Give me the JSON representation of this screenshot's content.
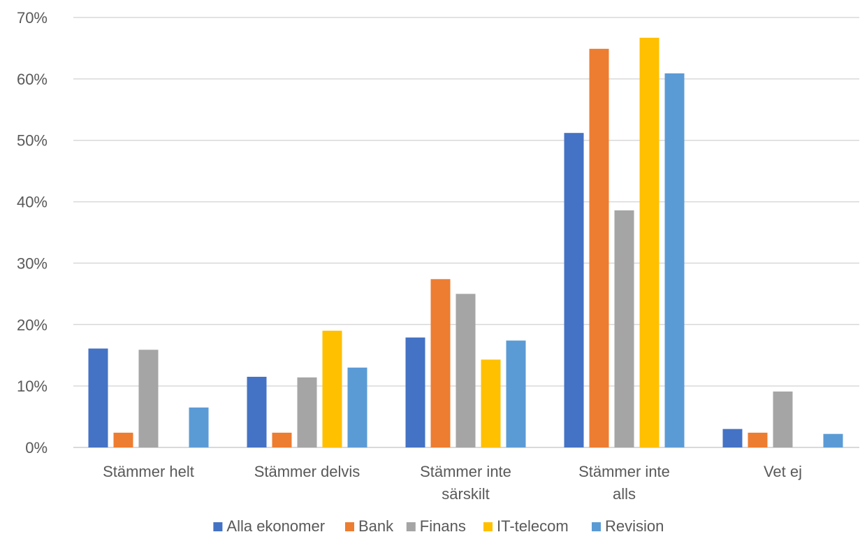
{
  "chart_data": {
    "type": "bar",
    "title": "",
    "xlabel": "",
    "ylabel": "",
    "ylim": [
      0,
      70
    ],
    "y_tick_step": 10,
    "y_tick_format": "percent",
    "grid": true,
    "legend_position": "bottom",
    "categories": [
      [
        "Stämmer helt"
      ],
      [
        "Stämmer delvis"
      ],
      [
        "Stämmer inte",
        "särskilt"
      ],
      [
        "Stämmer inte",
        "alls"
      ],
      [
        "Vet ej"
      ]
    ],
    "series": [
      {
        "name": "Alla ekonomer",
        "color": "#4472C4",
        "values": [
          16.1,
          11.5,
          17.9,
          51.2,
          3.0
        ]
      },
      {
        "name": "Bank",
        "color": "#ED7D31",
        "values": [
          2.4,
          2.4,
          27.4,
          64.9,
          2.4
        ]
      },
      {
        "name": "Finans",
        "color": "#A5A5A5",
        "values": [
          15.9,
          11.4,
          25.0,
          38.6,
          9.1
        ]
      },
      {
        "name": "IT-telecom",
        "color": "#FFC000",
        "values": [
          0,
          19.0,
          14.3,
          66.7,
          0
        ]
      },
      {
        "name": "Revision",
        "color": "#5B9BD5",
        "values": [
          6.5,
          13.0,
          17.4,
          60.9,
          2.2
        ]
      }
    ]
  }
}
